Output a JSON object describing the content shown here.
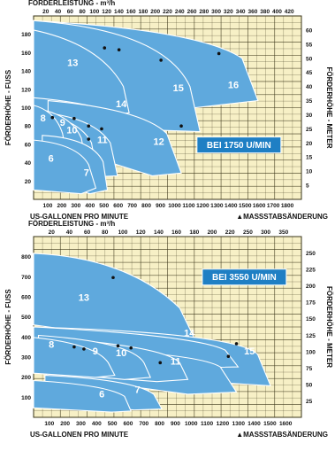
{
  "colors": {
    "paper": "#f7f0c6",
    "grid": "#3a3418",
    "region_fill": "#5fa9dd",
    "region_stroke": "#ffffff",
    "badge_fill": "#1f7fc4",
    "ink": "#111111"
  },
  "chart_data": [
    {
      "type": "area",
      "title": "",
      "top_axis_label": "FÖRDERLEISTUNG - m³/h",
      "top_ticks": [
        "20",
        "40",
        "60",
        "80",
        "100",
        "120",
        "140",
        "160",
        "180",
        "200",
        "220",
        "240",
        "260",
        "280",
        "300",
        "320",
        "340",
        "360",
        "380",
        "400",
        "420"
      ],
      "xlabel": "US-GALLONEN PRO MINUTE",
      "x_ticks": [
        "100",
        "200",
        "300",
        "400",
        "500",
        "600",
        "700",
        "800",
        "900",
        "1000",
        "1100",
        "1200",
        "1300",
        "1400",
        "1500",
        "1600",
        "1700",
        "1800"
      ],
      "xlim": [
        0,
        1850
      ],
      "ylabel_left": "FÖRDERHÖHE - FUSS",
      "left_ticks": [
        "20",
        "40",
        "60",
        "80",
        "100",
        "120",
        "140",
        "160",
        "180"
      ],
      "ylim_left": [
        0,
        195
      ],
      "ylabel_right": "FÖRDERHÖHE - METER",
      "right_ticks": [
        "5",
        "10",
        "15",
        "20",
        "25",
        "30",
        "35",
        "40",
        "45",
        "50",
        "55",
        "60"
      ],
      "scale_change_note": "▲MASSSTABSÄNDERUNG",
      "speed_label": "BEI 1750 U/MIN",
      "grid": true,
      "curves": [
        {
          "name": "6",
          "x": [
            0,
            300,
            380,
            430
          ],
          "y": [
            63,
            59,
            37,
            12
          ],
          "bottom": [
            [
              330,
              6
            ],
            [
              0,
              10
            ]
          ],
          "label_at": [
            120,
            40
          ]
        },
        {
          "name": "7",
          "x": [
            60,
            400,
            480,
            510
          ],
          "y": [
            68,
            65,
            40,
            10
          ],
          "bottom": [
            [
              390,
              6
            ],
            [
              60,
              20
            ]
          ],
          "label_at": [
            365,
            25
          ]
        },
        {
          "name": "8",
          "x": [
            0,
            150,
            200,
            230
          ],
          "y": [
            100,
            94,
            70,
            45
          ],
          "bottom": [
            [
              160,
              42
            ],
            [
              0,
              45
            ]
          ],
          "label_at": [
            65,
            83
          ]
        },
        {
          "name": "9",
          "x": [
            30,
            260,
            330,
            360
          ],
          "y": [
            96,
            90,
            65,
            40
          ],
          "bottom": [
            [
              260,
              40
            ],
            [
              30,
              52
            ]
          ],
          "label_at": [
            200,
            78
          ]
        },
        {
          "name": "10",
          "x": [
            60,
            320,
            400,
            430
          ],
          "y": [
            90,
            84,
            60,
            35
          ],
          "bottom": [
            [
              330,
              35
            ],
            [
              60,
              50
            ]
          ],
          "label_at": [
            265,
            70
          ]
        },
        {
          "name": "11",
          "x": [
            80,
            420,
            530,
            580
          ],
          "y": [
            92,
            86,
            60,
            25
          ],
          "bottom": [
            [
              420,
              24
            ],
            [
              80,
              50
            ]
          ],
          "label_at": [
            475,
            60
          ]
        },
        {
          "name": "12",
          "x": [
            100,
            750,
            920,
            1020
          ],
          "y": [
            105,
            96,
            70,
            28
          ],
          "bottom": [
            [
              820,
              25
            ],
            [
              100,
              60
            ]
          ],
          "label_at": [
            865,
            58
          ]
        },
        {
          "name": "14",
          "x": [
            0,
            620,
            820,
            900
          ],
          "y": [
            108,
            100,
            70,
            40
          ],
          "bottom": [
            [
              0,
              75
            ]
          ],
          "label_at": [
            605,
            98
          ]
        },
        {
          "name": "13",
          "x": [
            0,
            460,
            620,
            660
          ],
          "y": [
            180,
            165,
            120,
            92
          ],
          "bottom": [
            [
              0,
              78
            ]
          ],
          "label_at": [
            270,
            142
          ]
        },
        {
          "name": "15",
          "x": [
            0,
            900,
            1080,
            1150
          ],
          "y": [
            190,
            180,
            120,
            72
          ],
          "bottom": [
            [
              0,
              78
            ]
          ],
          "label_at": [
            1000,
            115
          ]
        },
        {
          "name": "16",
          "x": [
            0,
            1150,
            1440,
            1550
          ],
          "y": [
            190,
            180,
            150,
            105
          ],
          "bottom": [
            [
              0,
              78
            ]
          ],
          "label_at": [
            1380,
            118
          ]
        }
      ],
      "efficiency_points": [
        [
          490,
          161
        ],
        [
          590,
          159
        ],
        [
          880,
          148
        ],
        [
          1280,
          155
        ],
        [
          130,
          87
        ],
        [
          280,
          86
        ],
        [
          380,
          78
        ],
        [
          470,
          75
        ],
        [
          1020,
          78
        ],
        [
          380,
          64
        ]
      ]
    },
    {
      "type": "area",
      "title": "",
      "top_axis_label": "FÖRDERLEISTUNG - m³/h",
      "top_ticks": [
        "20",
        "40",
        "60",
        "80",
        "100",
        "120",
        "140",
        "160",
        "180",
        "200",
        "220",
        "250",
        "300",
        "350"
      ],
      "xlabel": "US-GALLONEN PRO MINUTE",
      "x_ticks": [
        "100",
        "200",
        "300",
        "400",
        "500",
        "600",
        "700",
        "800",
        "900",
        "1000",
        "1100",
        "1200",
        "1300",
        "1400",
        "1500",
        "1600"
      ],
      "xlim": [
        0,
        1650
      ],
      "ylabel_left": "FÖRDERHÖHE - FUSS",
      "left_ticks": [
        "100",
        "200",
        "300",
        "400",
        "500",
        "600",
        "700",
        "800"
      ],
      "ylim_left": [
        0,
        860
      ],
      "ylabel_right": "FÖRDERHÖHE - METER",
      "right_ticks": [
        "25",
        "50",
        "75",
        "100",
        "125",
        "150",
        "175",
        "200",
        "225",
        "250"
      ],
      "scale_change_note": "▲MASSSTABSÄNDERUNG",
      "speed_label": "BEI 3550 U/MIN",
      "grid": true,
      "curves": [
        {
          "name": "6",
          "x": [
            0,
            450,
            560,
            600
          ],
          "y": [
            175,
            155,
            100,
            30
          ],
          "bottom": [
            [
              480,
              25
            ],
            [
              0,
              45
            ]
          ],
          "label_at": [
            420,
            95
          ]
        },
        {
          "name": "7",
          "x": [
            70,
            620,
            740,
            790
          ],
          "y": [
            200,
            180,
            110,
            40
          ],
          "bottom": [
            [
              620,
              35
            ],
            [
              70,
              70
            ]
          ],
          "label_at": [
            640,
            115
          ]
        },
        {
          "name": "8",
          "x": [
            0,
            380,
            460,
            500
          ],
          "y": [
            380,
            350,
            260,
            200
          ],
          "bottom": [
            [
              380,
              190
            ],
            [
              0,
              210
            ]
          ],
          "label_at": [
            110,
            330
          ]
        },
        {
          "name": "9",
          "x": [
            30,
            600,
            680,
            720
          ],
          "y": [
            390,
            360,
            260,
            190
          ],
          "bottom": [
            [
              560,
              180
            ],
            [
              30,
              220
            ]
          ],
          "label_at": [
            380,
            300
          ]
        },
        {
          "name": "10",
          "x": [
            60,
            800,
            900,
            950
          ],
          "y": [
            380,
            340,
            260,
            180
          ],
          "bottom": [
            [
              760,
              170
            ],
            [
              60,
              210
            ]
          ],
          "label_at": [
            540,
            290
          ]
        },
        {
          "name": "11",
          "x": [
            80,
            1000,
            1150,
            1250
          ],
          "y": [
            330,
            310,
            240,
            120
          ],
          "bottom": [
            [
              950,
              110
            ],
            [
              80,
              200
            ]
          ],
          "label_at": [
            875,
            250
          ]
        },
        {
          "name": "14",
          "x": [
            0,
            1000,
            1180,
            1260
          ],
          "y": [
            430,
            390,
            320,
            240
          ],
          "bottom": [
            [
              0,
              220
            ]
          ],
          "label_at": [
            960,
            385
          ]
        },
        {
          "name": "15",
          "x": [
            0,
            1250,
            1380,
            1460
          ],
          "y": [
            430,
            400,
            300,
            150
          ],
          "bottom": [
            [
              0,
              220
            ]
          ],
          "label_at": [
            1330,
            300
          ]
        },
        {
          "name": "13",
          "x": [
            0,
            580,
            900,
            1020
          ],
          "y": [
            780,
            760,
            520,
            330
          ],
          "bottom": [
            [
              0,
              440
            ]
          ],
          "label_at": [
            310,
            555
          ]
        }
      ],
      "efficiency_points": [
        [
          490,
          665
        ],
        [
          250,
          335
        ],
        [
          310,
          325
        ],
        [
          520,
          340
        ],
        [
          600,
          330
        ],
        [
          780,
          260
        ],
        [
          1250,
          350
        ],
        [
          1200,
          290
        ]
      ]
    }
  ]
}
